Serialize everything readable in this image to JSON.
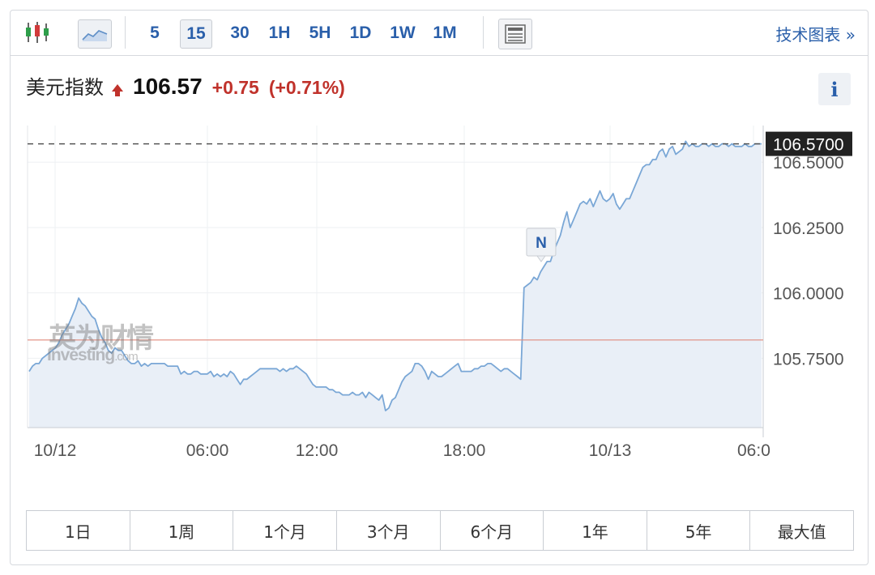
{
  "toolbar": {
    "candle_icon": "candlestick-chart-icon",
    "area_icon": "area-chart-icon",
    "news_icon": "news-icon",
    "intervals": [
      "5",
      "15",
      "30",
      "1H",
      "5H",
      "1D",
      "1W",
      "1M"
    ],
    "active_interval": "15",
    "tech_chart_label": "技术图表 »"
  },
  "quote": {
    "name": "美元指数",
    "price": "106.57",
    "change": "+0.75",
    "change_pct": "(+0.71%)",
    "direction": "up",
    "up_color": "#c0322b"
  },
  "info_label": "i",
  "watermark": {
    "cn": "英为财情",
    "en": "Investing",
    "en_suffix": ".com"
  },
  "chart_data": {
    "type": "area",
    "series": [
      {
        "values": [
          105.7,
          105.72,
          105.73,
          105.73,
          105.75,
          105.76,
          105.77,
          105.78,
          105.79,
          105.81,
          105.84,
          105.86,
          105.88,
          105.91,
          105.94,
          105.98,
          105.96,
          105.95,
          105.93,
          105.91,
          105.9,
          105.86,
          105.83,
          105.81,
          105.78,
          105.77,
          105.79,
          105.78,
          105.78,
          105.76,
          105.74,
          105.73,
          105.73,
          105.74,
          105.72,
          105.73,
          105.72,
          105.73,
          105.73,
          105.73,
          105.73,
          105.73,
          105.72,
          105.72,
          105.72,
          105.72,
          105.69,
          105.7,
          105.69,
          105.69,
          105.7,
          105.7,
          105.69,
          105.69,
          105.69,
          105.7,
          105.68,
          105.69,
          105.68,
          105.69,
          105.68,
          105.7,
          105.69,
          105.67,
          105.65,
          105.67,
          105.67,
          105.68,
          105.69,
          105.7,
          105.71,
          105.71,
          105.71,
          105.71,
          105.71,
          105.71,
          105.7,
          105.71,
          105.7,
          105.71,
          105.71,
          105.72,
          105.71,
          105.7,
          105.69,
          105.67,
          105.65,
          105.64,
          105.64,
          105.64,
          105.64,
          105.63,
          105.63,
          105.62,
          105.62,
          105.61,
          105.61,
          105.61,
          105.62,
          105.61,
          105.61,
          105.62,
          105.6,
          105.62,
          105.61,
          105.6,
          105.59,
          105.61,
          105.55,
          105.56,
          105.59,
          105.6,
          105.63,
          105.66,
          105.68,
          105.69,
          105.7,
          105.73,
          105.73,
          105.72,
          105.7,
          105.67,
          105.7,
          105.69,
          105.68,
          105.68,
          105.69,
          105.7,
          105.71,
          105.72,
          105.73,
          105.7,
          105.7,
          105.7,
          105.7,
          105.71,
          105.71,
          105.72,
          105.72,
          105.73,
          105.73,
          105.72,
          105.71,
          105.7,
          105.71,
          105.71,
          105.7,
          105.69,
          105.68,
          105.67,
          106.02,
          106.03,
          106.04,
          106.06,
          106.05,
          106.08,
          106.1,
          106.12,
          106.12,
          106.16,
          106.19,
          106.22,
          106.27,
          106.31,
          106.25,
          106.28,
          106.31,
          106.34,
          106.35,
          106.34,
          106.36,
          106.33,
          106.36,
          106.39,
          106.36,
          106.35,
          106.36,
          106.38,
          106.34,
          106.32,
          106.34,
          106.36,
          106.36,
          106.39,
          106.42,
          106.45,
          106.48,
          106.49,
          106.49,
          106.51,
          106.51,
          106.54,
          106.55,
          106.52,
          106.55,
          106.56,
          106.53,
          106.54,
          106.55,
          106.58,
          106.56,
          106.57,
          106.56,
          106.56,
          106.57,
          106.57,
          106.56,
          106.57,
          106.56,
          106.56,
          106.57,
          106.57,
          106.56,
          106.57,
          106.56,
          106.56,
          106.56,
          106.57,
          106.56,
          106.56,
          106.57,
          106.57,
          106.57
        ]
      }
    ],
    "x_ticks": [
      "10/12",
      "06:00",
      "12:00",
      "18:00",
      "10/13",
      "06:0"
    ],
    "y_ticks": [
      "106.5000",
      "106.2500",
      "106.0000",
      "105.7500"
    ],
    "y_tick_values": [
      106.5,
      106.25,
      106.0,
      105.75
    ],
    "ylim": [
      105.485,
      106.64
    ],
    "last_price_label": "106.5700",
    "last_price": 106.57,
    "reference_line": 105.82,
    "news_marker": {
      "label": "N",
      "at_index": 152
    },
    "colors": {
      "line": "#7aa7d6",
      "fill": "#e9eff7",
      "reference_line": "#e08a7c",
      "last_price_line": "#555555",
      "last_price_badge": "#222222"
    },
    "grid": true
  },
  "ranges": [
    "1日",
    "1周",
    "1个月",
    "3个月",
    "6个月",
    "1年",
    "5年",
    "最大值"
  ]
}
